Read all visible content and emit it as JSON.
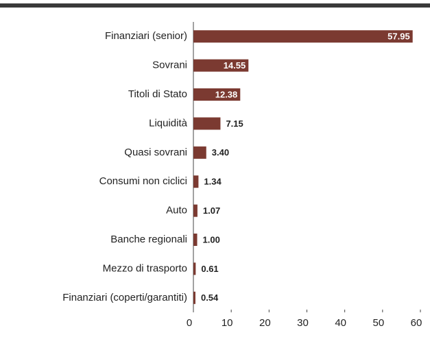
{
  "chart_data": {
    "type": "bar",
    "orientation": "horizontal",
    "categories": [
      "Finanziari (senior)",
      "Sovrani",
      "Titoli di Stato",
      "Liquidità",
      "Quasi sovrani",
      "Consumi non ciclici",
      "Auto",
      "Banche regionali",
      "Mezzo di trasporto",
      "Finanziari (coperti/garantiti)"
    ],
    "values": [
      57.95,
      14.55,
      12.38,
      7.15,
      3.4,
      1.34,
      1.07,
      1.0,
      0.61,
      0.54
    ],
    "value_labels": [
      "57.95",
      "14.55",
      "12.38",
      "7.15",
      "3.40",
      "1.34",
      "1.07",
      "1.00",
      "0.61",
      "0.54"
    ],
    "color": "#7b3a31",
    "xlim": [
      0,
      60
    ],
    "xticks": [
      0,
      10,
      20,
      30,
      40,
      50,
      60
    ]
  }
}
